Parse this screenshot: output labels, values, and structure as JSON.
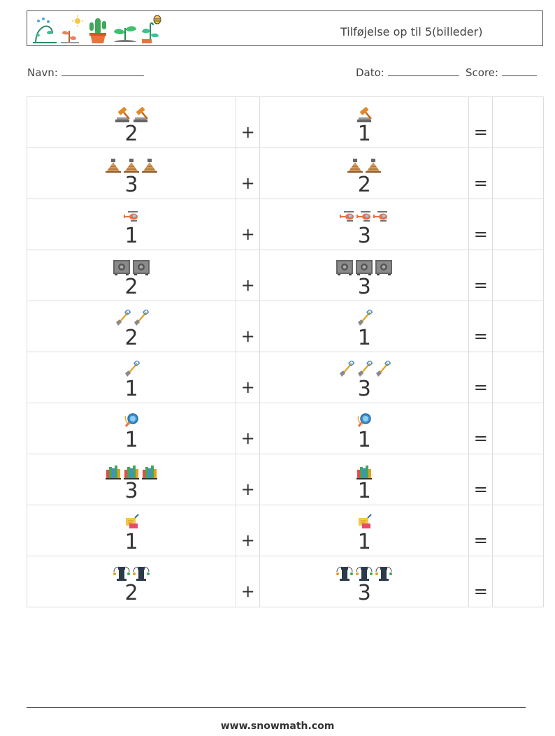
{
  "header": {
    "title": "Tilføjelse op til 5(billeder)",
    "plant_icons": [
      "water-plant-icon",
      "sun-plant-icon",
      "cactus-icon",
      "sprout-icon",
      "bee-plant-icon"
    ]
  },
  "info": {
    "name_label": "Navn:",
    "date_label": "Dato:",
    "score_label": "Score:"
  },
  "operators": {
    "plus": "+",
    "equals": "="
  },
  "rows": [
    {
      "icon": "gavel",
      "a": 2,
      "b": 1,
      "a_text": "2",
      "b_text": "1"
    },
    {
      "icon": "pyramid",
      "a": 3,
      "b": 2,
      "a_text": "3",
      "b_text": "2"
    },
    {
      "icon": "helicopter",
      "a": 1,
      "b": 3,
      "a_text": "1",
      "b_text": "3"
    },
    {
      "icon": "safe",
      "a": 2,
      "b": 3,
      "a_text": "2",
      "b_text": "3"
    },
    {
      "icon": "shovel",
      "a": 2,
      "b": 1,
      "a_text": "2",
      "b_text": "1"
    },
    {
      "icon": "shovel",
      "a": 1,
      "b": 3,
      "a_text": "1",
      "b_text": "3"
    },
    {
      "icon": "magnifier",
      "a": 1,
      "b": 1,
      "a_text": "1",
      "b_text": "1"
    },
    {
      "icon": "books",
      "a": 3,
      "b": 1,
      "a_text": "3",
      "b_text": "1"
    },
    {
      "icon": "sticky-note",
      "a": 1,
      "b": 1,
      "a_text": "1",
      "b_text": "1"
    },
    {
      "icon": "chess-rook",
      "a": 2,
      "b": 3,
      "a_text": "2",
      "b_text": "3"
    }
  ],
  "footer": {
    "url": "www.snowmath.com"
  }
}
